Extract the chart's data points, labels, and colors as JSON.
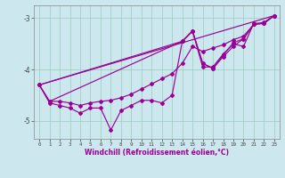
{
  "xlabel": "Windchill (Refroidissement éolien,°C)",
  "background_color": "#cce8ee",
  "grid_color": "#99ccbb",
  "line_color": "#990099",
  "xlim": [
    -0.5,
    23.5
  ],
  "ylim": [
    -5.35,
    -2.75
  ],
  "yticks": [
    -5,
    -4,
    -3
  ],
  "xticks": [
    0,
    1,
    2,
    3,
    4,
    5,
    6,
    7,
    8,
    9,
    10,
    11,
    12,
    13,
    14,
    15,
    16,
    17,
    18,
    19,
    20,
    21,
    22,
    23
  ],
  "curve1_x": [
    0,
    1,
    2,
    3,
    4,
    5,
    6,
    7,
    8,
    9,
    10,
    11,
    12,
    13,
    14,
    15,
    16,
    17,
    18,
    19,
    20,
    21,
    22,
    23
  ],
  "curve1_y": [
    -4.3,
    -4.65,
    -4.7,
    -4.75,
    -4.85,
    -4.75,
    -4.75,
    -5.18,
    -4.8,
    -4.7,
    -4.6,
    -4.6,
    -4.65,
    -4.5,
    -3.45,
    -3.25,
    -3.95,
    -3.95,
    -3.7,
    -3.5,
    -3.55,
    -3.1,
    -3.1,
    -2.95
  ],
  "curve2_x": [
    0,
    1,
    2,
    3,
    4,
    5,
    6,
    7,
    8,
    9,
    10,
    11,
    12,
    13,
    14,
    15,
    16,
    17,
    18,
    19,
    20,
    21,
    22,
    23
  ],
  "curve2_y": [
    -4.3,
    -4.62,
    -4.62,
    -4.65,
    -4.7,
    -4.65,
    -4.62,
    -4.6,
    -4.55,
    -4.48,
    -4.38,
    -4.28,
    -4.18,
    -4.08,
    -3.88,
    -3.55,
    -3.65,
    -3.58,
    -3.52,
    -3.42,
    -3.35,
    -3.12,
    -3.08,
    -2.95
  ],
  "curve3_x": [
    0,
    23
  ],
  "curve3_y": [
    -4.3,
    -2.95
  ],
  "curve4_x": [
    0,
    1,
    14,
    15,
    16,
    17,
    18,
    19,
    20,
    21,
    22,
    23
  ],
  "curve4_y": [
    -4.3,
    -4.62,
    -3.45,
    -3.25,
    -3.88,
    -3.98,
    -3.72,
    -3.48,
    -3.4,
    -3.12,
    -3.1,
    -2.95
  ],
  "curve5_x": [
    0,
    14,
    15,
    16,
    17,
    18,
    19,
    20,
    21,
    22,
    23
  ],
  "curve5_y": [
    -4.3,
    -3.45,
    -3.25,
    -3.88,
    -3.98,
    -3.75,
    -3.55,
    -3.4,
    -3.12,
    -3.1,
    -2.95
  ]
}
